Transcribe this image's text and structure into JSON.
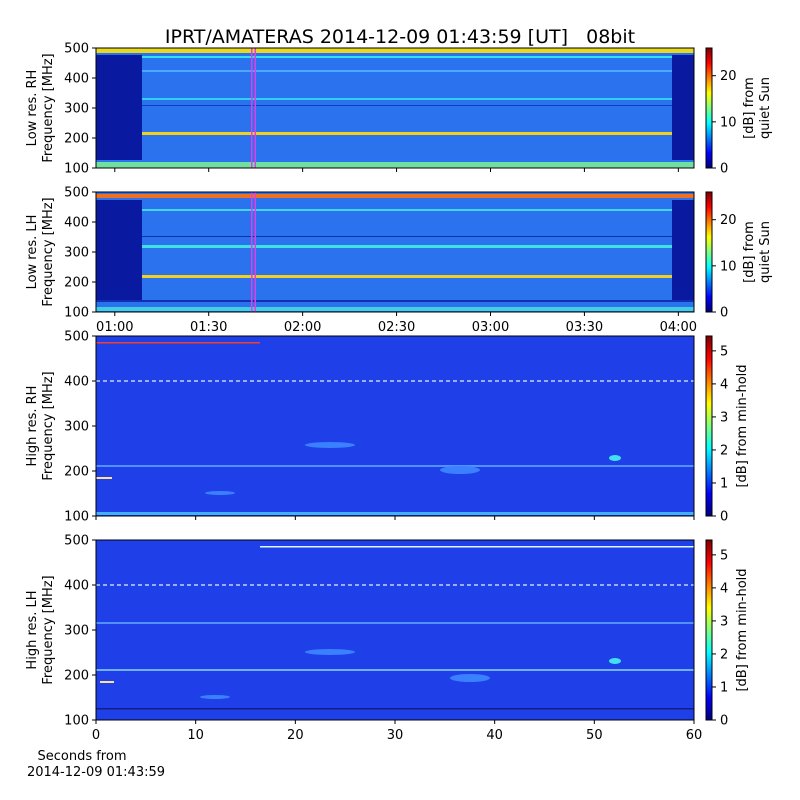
{
  "title": "IPRT/AMATERAS 2014-12-09 01:43:59 [UT]   08bit",
  "colormap": [
    "#00007f",
    "#0000ff",
    "#007fff",
    "#00ffff",
    "#7fff7f",
    "#ffff00",
    "#ff7f00",
    "#ff0000",
    "#7f0000"
  ],
  "chart_data": [
    {
      "type": "heatmap",
      "ylabel": [
        "Low res. RH",
        "Frequency [MHz]"
      ],
      "ylim": [
        100,
        500
      ],
      "yticks": [
        100,
        200,
        300,
        400,
        500
      ],
      "xlim": [
        "00:54",
        "04:05"
      ],
      "colorbar": {
        "label": [
          "[dB] from",
          "quiet Sun"
        ],
        "lim": [
          0,
          26
        ],
        "ticks": [
          0,
          10,
          20
        ]
      }
    },
    {
      "type": "heatmap",
      "ylabel": [
        "Low res. LH",
        "Frequency [MHz]"
      ],
      "ylim": [
        100,
        500
      ],
      "yticks": [
        100,
        200,
        300,
        400,
        500
      ],
      "xlim": [
        "00:54",
        "04:05"
      ],
      "xticks": [
        "01:00",
        "01:30",
        "02:00",
        "02:30",
        "03:00",
        "03:30",
        "04:00"
      ],
      "colorbar": {
        "label": [
          "[dB] from",
          "quiet Sun"
        ],
        "lim": [
          0,
          26
        ],
        "ticks": [
          0,
          10,
          20
        ]
      }
    },
    {
      "type": "heatmap",
      "ylabel": [
        "High res. RH",
        "Frequency [MHz]"
      ],
      "ylim": [
        100,
        500
      ],
      "yticks": [
        100,
        200,
        300,
        400,
        500
      ],
      "xlim": [
        0,
        60
      ],
      "colorbar": {
        "label": [
          "[dB] from min-hold"
        ],
        "lim": [
          0,
          5.45
        ],
        "ticks": [
          0,
          1,
          2,
          3,
          4,
          5
        ]
      }
    },
    {
      "type": "heatmap",
      "ylabel": [
        "High res. LH",
        "Frequency [MHz]"
      ],
      "ylim": [
        100,
        500
      ],
      "yticks": [
        100,
        200,
        300,
        400,
        500
      ],
      "xlim": [
        0,
        60
      ],
      "xticks": [
        0,
        10,
        20,
        30,
        40,
        50,
        60
      ],
      "xlabel": [
        "Seconds from",
        "2014-12-09 01:43:59"
      ],
      "colorbar": {
        "label": [
          "[dB] from min-hold"
        ],
        "lim": [
          0,
          5.45
        ],
        "ticks": [
          0,
          1,
          2,
          3,
          4,
          5
        ]
      }
    }
  ]
}
